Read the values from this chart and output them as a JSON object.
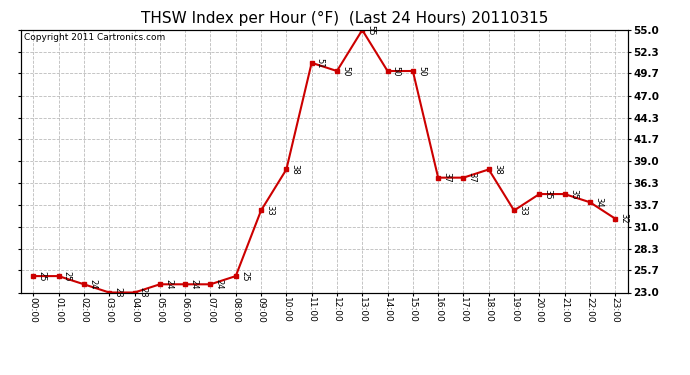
{
  "title": "THSW Index per Hour (°F)  (Last 24 Hours) 20110315",
  "copyright": "Copyright 2011 Cartronics.com",
  "hours": [
    "00:00",
    "01:00",
    "02:00",
    "03:00",
    "04:00",
    "05:00",
    "06:00",
    "07:00",
    "08:00",
    "09:00",
    "10:00",
    "11:00",
    "12:00",
    "13:00",
    "14:00",
    "15:00",
    "16:00",
    "17:00",
    "18:00",
    "19:00",
    "20:00",
    "21:00",
    "22:00",
    "23:00"
  ],
  "values": [
    25,
    25,
    24,
    23,
    23,
    24,
    24,
    24,
    25,
    33,
    38,
    51,
    50,
    55,
    50,
    50,
    37,
    37,
    38,
    33,
    35,
    35,
    34,
    32
  ],
  "ylim": [
    23.0,
    55.0
  ],
  "yticks": [
    23.0,
    25.7,
    28.3,
    31.0,
    33.7,
    36.3,
    39.0,
    41.7,
    44.3,
    47.0,
    49.7,
    52.3,
    55.0
  ],
  "line_color": "#cc0000",
  "marker_color": "#cc0000",
  "bg_color": "#ffffff",
  "grid_color": "#bbbbbb",
  "title_fontsize": 11,
  "copyright_fontsize": 6.5,
  "tick_fontsize": 7.5
}
